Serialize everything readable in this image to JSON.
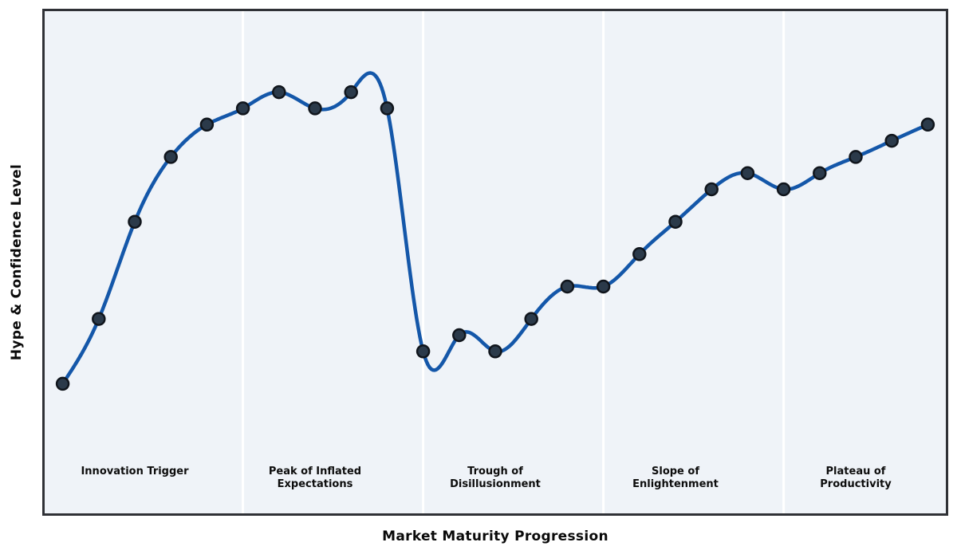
{
  "figure": {
    "xlabel": "Market Maturity Progression",
    "ylabel": "Hype & Confidence Level"
  },
  "chart_data": {
    "type": "line",
    "title": "",
    "xlabel": "Market Maturity Progression",
    "ylabel": "Hype & Confidence Level",
    "x": [
      1,
      2,
      3,
      4,
      5,
      6,
      7,
      8,
      9,
      10,
      11,
      12,
      13,
      14,
      15,
      16,
      17,
      18,
      19,
      20,
      21,
      22,
      23,
      24,
      25
    ],
    "y": [
      5,
      25,
      55,
      75,
      85,
      90,
      95,
      90,
      95,
      90,
      15,
      20,
      15,
      25,
      35,
      35,
      45,
      55,
      65,
      70,
      65,
      70,
      75,
      80,
      85
    ],
    "xlim": [
      0.5,
      25.5
    ],
    "ylim": [
      -35,
      120
    ],
    "grid": false,
    "legend": "none",
    "smoothing": "natural-cubic-spline",
    "line": {
      "color": "#1457a9",
      "width": 4.5
    },
    "marker": {
      "radius": 7.5,
      "fill": "#2b3a4a",
      "stroke": "#10151c",
      "stroke_width": 2.5
    },
    "plot_background": "#eff3f8",
    "phase_separator_color": "#ffffff",
    "phase_separator_width": 3,
    "phases": [
      {
        "label": "Innovation Trigger",
        "lines": [
          "Innovation Trigger"
        ],
        "x_start": 0.5,
        "x_end": 6,
        "label_x": 3
      },
      {
        "label": "Peak of Inflated Expectations",
        "lines": [
          "Peak of Inflated",
          "Expectations"
        ],
        "x_start": 6,
        "x_end": 11,
        "label_x": 8
      },
      {
        "label": "Trough of Disillusionment",
        "lines": [
          "Trough of",
          "Disillusionment"
        ],
        "x_start": 11,
        "x_end": 16,
        "label_x": 13
      },
      {
        "label": "Slope of Enlightenment",
        "lines": [
          "Slope of",
          "Enlightenment"
        ],
        "x_start": 16,
        "x_end": 21,
        "label_x": 18
      },
      {
        "label": "Plateau of Productivity",
        "lines": [
          "Plateau of",
          "Productivity"
        ],
        "x_start": 21,
        "x_end": 25.5,
        "label_x": 23
      }
    ]
  }
}
